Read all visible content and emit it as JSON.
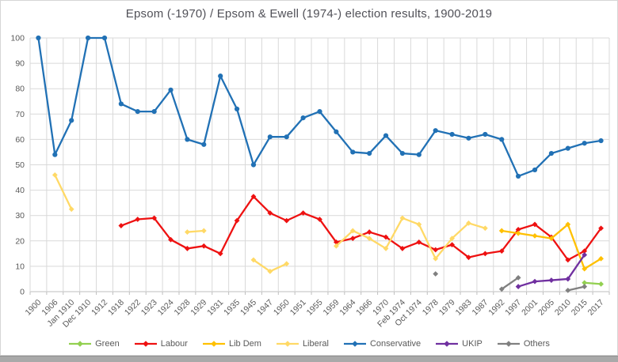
{
  "chart_data": {
    "type": "line",
    "title": "Epsom (-1970) / Epsom & Ewell (1974-) election results, 1900-2019",
    "xlabel": "",
    "ylabel": "",
    "ylim": [
      0,
      100
    ],
    "ytick_step": 10,
    "grid": true,
    "legend_position": "bottom",
    "categories": [
      "1900",
      "1906",
      "Jan 1910",
      "Dec 1910",
      "1912",
      "1918",
      "1922",
      "1923",
      "1924",
      "1928",
      "1929",
      "1931",
      "1935",
      "1945",
      "1947",
      "1950",
      "1951",
      "1955",
      "1959",
      "1964",
      "1966",
      "1970",
      "Feb 1974",
      "Oct 1974",
      "1978",
      "1979",
      "1983",
      "1987",
      "1992",
      "1997",
      "2001",
      "2005",
      "2010",
      "2015",
      "2017"
    ],
    "series": [
      {
        "name": "Green",
        "color": "#92D050",
        "marker": "diamond",
        "values": [
          null,
          null,
          null,
          null,
          null,
          null,
          null,
          null,
          null,
          null,
          null,
          null,
          null,
          null,
          null,
          null,
          null,
          null,
          null,
          null,
          null,
          null,
          null,
          null,
          null,
          null,
          null,
          null,
          null,
          null,
          null,
          null,
          null,
          3.5,
          3
        ]
      },
      {
        "name": "Labour",
        "color": "#EE1111",
        "marker": "diamond",
        "values": [
          null,
          null,
          null,
          null,
          null,
          26,
          28.5,
          29,
          20.5,
          17,
          18,
          15,
          28,
          37.5,
          31,
          28,
          31,
          28.5,
          19.5,
          21,
          23.5,
          21.5,
          17,
          19.5,
          16.5,
          18.5,
          13.5,
          15,
          16,
          24.5,
          26.5,
          21.5,
          12.5,
          16,
          25
        ]
      },
      {
        "name": "Lib Dem",
        "color": "#FFC000",
        "marker": "diamond",
        "values": [
          null,
          null,
          null,
          null,
          null,
          null,
          null,
          null,
          null,
          null,
          null,
          null,
          null,
          null,
          null,
          null,
          null,
          null,
          null,
          null,
          null,
          null,
          null,
          null,
          null,
          null,
          null,
          null,
          24,
          23,
          22,
          21,
          26.5,
          9,
          13
        ]
      },
      {
        "name": "Liberal",
        "color": "#FFD966",
        "marker": "diamond",
        "values": [
          null,
          46,
          32.5,
          null,
          null,
          null,
          null,
          null,
          null,
          23.5,
          24,
          null,
          null,
          12.5,
          8,
          11,
          null,
          null,
          18,
          24,
          21,
          17,
          29,
          26.5,
          13,
          21,
          27,
          25,
          null,
          null,
          null,
          null,
          null,
          null,
          null
        ]
      },
      {
        "name": "Conservative",
        "color": "#2171B5",
        "marker": "circle",
        "values": [
          100,
          54,
          67.5,
          100,
          100,
          74,
          71,
          71,
          79.5,
          60,
          58,
          85,
          72,
          50,
          61,
          61,
          68.5,
          71,
          63,
          55,
          54.5,
          61.5,
          54.5,
          54,
          63.5,
          62,
          60.5,
          62,
          60,
          45.5,
          48,
          54.5,
          56.5,
          58.5,
          59.5
        ]
      },
      {
        "name": "UKIP",
        "color": "#7030A0",
        "marker": "diamond",
        "values": [
          null,
          null,
          null,
          null,
          null,
          null,
          null,
          null,
          null,
          null,
          null,
          null,
          null,
          null,
          null,
          null,
          null,
          null,
          null,
          null,
          null,
          null,
          null,
          null,
          null,
          null,
          null,
          null,
          null,
          2,
          4,
          4.5,
          5,
          14.5,
          null
        ]
      },
      {
        "name": "Others",
        "color": "#808080",
        "marker": "diamond",
        "values": [
          null,
          null,
          null,
          null,
          null,
          null,
          null,
          null,
          null,
          null,
          null,
          null,
          null,
          null,
          null,
          null,
          null,
          null,
          null,
          null,
          null,
          null,
          null,
          null,
          7,
          null,
          null,
          null,
          1,
          5.5,
          null,
          null,
          0.5,
          2,
          null
        ]
      }
    ],
    "axis_colors": {
      "text": "#595959",
      "grid": "#d9d9d9",
      "axis_line": "#bfbfbf"
    }
  }
}
